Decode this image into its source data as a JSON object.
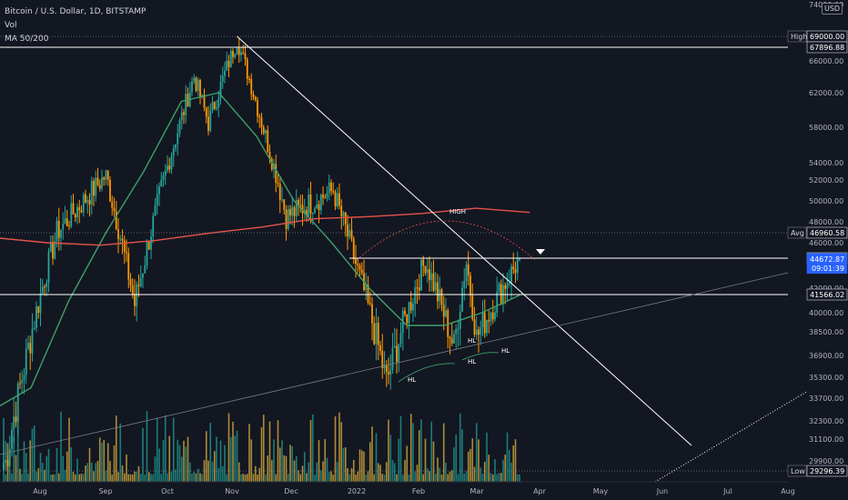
{
  "legend": {
    "symbol": "Bitcoin / U.S. Dollar, 1D, BITSTAMP",
    "volume": "Vol",
    "moving_averages": "MA 50/200"
  },
  "currency_badge": "USD",
  "colors": {
    "background": "#131722",
    "up_candle": "#26a69a",
    "down_candle": "#ff9800",
    "up_volume": "#1f8f88",
    "down_volume": "#c8a13a",
    "ma50": "#3ea06a",
    "ma200": "#e5534b",
    "drawing": "#ffffff",
    "label_bg": "#131722"
  },
  "chart_data": {
    "type": "candlestick",
    "y_axis_ticks": [
      74000,
      69000,
      66000,
      62000,
      58000,
      54000,
      52000,
      50000,
      48000,
      46000,
      42000,
      40000,
      38500,
      36900,
      35300,
      33700,
      32300,
      31100,
      29900
    ],
    "y_axis_tick_labels": [
      "74000.00",
      "69000.00",
      "66000.00",
      "62000.00",
      "58000.00",
      "54000.00",
      "52000.00",
      "50000.00",
      "48000.00",
      "46000.00",
      "42000.00",
      "40000.00",
      "38500.00",
      "36900.00",
      "35300.00",
      "33700.00",
      "32300.00",
      "31100.00",
      "29900.00"
    ],
    "x_axis_labels": [
      "Aug",
      "Sep",
      "Oct",
      "Nov",
      "Dec",
      "2022",
      "Feb",
      "Mar",
      "Apr",
      "May",
      "Jun",
      "Jul",
      "Aug"
    ],
    "price_labels": [
      {
        "tag": "High",
        "value": "69000.00",
        "style": "plain"
      },
      {
        "tag": "",
        "value": "67896.88",
        "style": "boxed"
      },
      {
        "tag": "Avg",
        "value": "46960.58",
        "style": "plain"
      },
      {
        "tag": "",
        "value": "44735.51",
        "style": "boxed"
      },
      {
        "tag": "",
        "value": "44672.87",
        "sub": "09:01:39",
        "style": "current"
      },
      {
        "tag": "",
        "value": "41566.02",
        "style": "boxed"
      },
      {
        "tag": "Low",
        "value": "29296.39",
        "style": "plain"
      }
    ],
    "horizontal_levels": [
      67896.88,
      44735.51,
      41566.02
    ],
    "dotted_levels": [
      69000,
      46960.58,
      29296.39
    ],
    "annotations": [
      "HIGH",
      "HL",
      "HL",
      "HL",
      "HL"
    ],
    "anchor_points": [
      {
        "date": "2021-07-20",
        "close": 29800
      },
      {
        "date": "2021-08-14",
        "close": 47000
      },
      {
        "date": "2021-09-07",
        "close": 52500
      },
      {
        "date": "2021-09-21",
        "close": 40700
      },
      {
        "date": "2021-10-20",
        "close": 64000
      },
      {
        "date": "2021-10-27",
        "close": 58500
      },
      {
        "date": "2021-11-10",
        "close": 68800
      },
      {
        "date": "2021-12-04",
        "close": 48500
      },
      {
        "date": "2021-12-27",
        "close": 51000
      },
      {
        "date": "2022-01-22",
        "close": 35000
      },
      {
        "date": "2022-02-10",
        "close": 44500
      },
      {
        "date": "2022-02-24",
        "close": 37400
      },
      {
        "date": "2022-03-02",
        "close": 44400
      },
      {
        "date": "2022-03-07",
        "close": 38100
      },
      {
        "date": "2022-03-28",
        "close": 44672.87
      }
    ],
    "series": [
      {
        "name": "MA 50",
        "values": [
          33000,
          34500,
          41000,
          47000,
          53000,
          61000,
          62000,
          57000,
          50000,
          46000,
          42000,
          39000,
          39000,
          40000,
          41500
        ]
      },
      {
        "name": "MA 200",
        "values": [
          46500,
          46000,
          45800,
          46200,
          46900,
          47500,
          48300,
          48500,
          48800,
          49300,
          48900
        ]
      }
    ]
  }
}
